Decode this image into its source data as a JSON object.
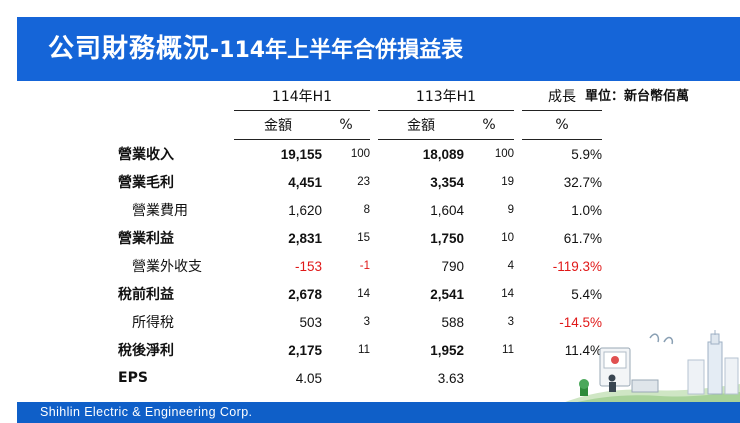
{
  "title": {
    "main": "公司財務概況",
    "sub": "-114年上半年合併損益表"
  },
  "unit": "單位：新台幣佰萬",
  "table": {
    "period_headers": [
      "114年H1",
      "113年H1",
      "成長"
    ],
    "sub_headers": [
      "金額",
      "%",
      "金額",
      "%",
      "%"
    ],
    "rows": [
      {
        "label": "營業收入",
        "a": "19,155",
        "ap": "100",
        "b": "18,089",
        "bp": "100",
        "g": "5.9%"
      },
      {
        "label": "營業毛利",
        "a": "4,451",
        "ap": "23",
        "b": "3,354",
        "bp": "19",
        "g": "32.7%"
      },
      {
        "label": "營業費用",
        "a": "1,620",
        "ap": "8",
        "b": "1,604",
        "bp": "9",
        "g": "1.0%"
      },
      {
        "label": "營業利益",
        "a": "2,831",
        "ap": "15",
        "b": "1,750",
        "bp": "10",
        "g": "61.7%"
      },
      {
        "label": "營業外收支",
        "a": "-153",
        "ap": "-1",
        "b": "790",
        "bp": "4",
        "g": "-119.3%"
      },
      {
        "label": "稅前利益",
        "a": "2,678",
        "ap": "14",
        "b": "2,541",
        "bp": "14",
        "g": "5.4%"
      },
      {
        "label": "所得稅",
        "a": "503",
        "ap": "3",
        "b": "588",
        "bp": "3",
        "g": "-14.5%"
      },
      {
        "label": "稅後淨利",
        "a": "2,175",
        "ap": "11",
        "b": "1,952",
        "bp": "11",
        "g": "11.4%"
      },
      {
        "label": "EPS",
        "a": "4.05",
        "ap": "",
        "b": "3.63",
        "bp": "",
        "g": ""
      }
    ]
  },
  "footer": "Shihlin Electric & Engineering Corp.",
  "colors": {
    "title_bar": "#1565d8",
    "footer_bar": "#0f5fc8",
    "negative": "#e01818"
  },
  "illustration": "city-skyline-illustration"
}
